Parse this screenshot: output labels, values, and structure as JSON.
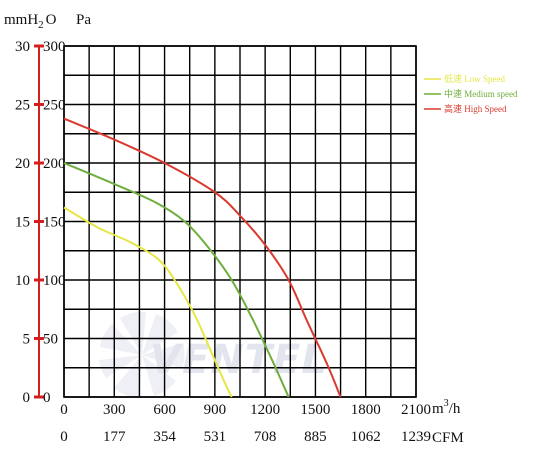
{
  "units": {
    "pressure_left": "mmH2O",
    "pressure_left_base": "mmH",
    "pressure_left_sub": "2",
    "pressure_left_end": "O",
    "pressure_right": "Pa",
    "flow_top": "m3/h",
    "flow_top_base": "m",
    "flow_top_sup": "3",
    "flow_top_end": "/h",
    "flow_bottom": "CFM"
  },
  "watermark": "VENTEL",
  "chart_data": {
    "type": "line",
    "title": "",
    "x_primary": {
      "label": "m3/h",
      "ticks": [
        0,
        300,
        600,
        900,
        1200,
        1500,
        1800,
        2100
      ],
      "range": [
        0,
        2100
      ]
    },
    "x_secondary": {
      "label": "CFM",
      "ticks": [
        0,
        177,
        354,
        531,
        708,
        885,
        1062,
        1239
      ]
    },
    "y_primary": {
      "label": "mmH2O",
      "ticks": [
        0,
        5,
        10,
        15,
        20,
        25,
        30
      ],
      "range": [
        0,
        30
      ]
    },
    "y_secondary": {
      "label": "Pa",
      "ticks": [
        0,
        50,
        100,
        150,
        200,
        250,
        300
      ],
      "range": [
        0,
        300
      ]
    },
    "grid": true,
    "legend_position": "right",
    "series": [
      {
        "name": "低速 Low Speed",
        "color": "#e6e646",
        "points": [
          [
            0,
            162
          ],
          [
            200,
            145
          ],
          [
            400,
            132
          ],
          [
            560,
            118
          ],
          [
            660,
            100
          ],
          [
            780,
            70
          ],
          [
            880,
            38
          ],
          [
            960,
            12
          ],
          [
            1000,
            0
          ]
        ]
      },
      {
        "name": "中速 Medium speed",
        "color": "#6fae3c",
        "points": [
          [
            0,
            200
          ],
          [
            300,
            182
          ],
          [
            550,
            166
          ],
          [
            720,
            150
          ],
          [
            860,
            128
          ],
          [
            1000,
            100
          ],
          [
            1120,
            68
          ],
          [
            1240,
            32
          ],
          [
            1340,
            0
          ]
        ]
      },
      {
        "name": "高速 High Speed",
        "color": "#d93a2e",
        "points": [
          [
            0,
            238
          ],
          [
            300,
            220
          ],
          [
            600,
            200
          ],
          [
            900,
            175
          ],
          [
            1050,
            155
          ],
          [
            1200,
            130
          ],
          [
            1340,
            100
          ],
          [
            1450,
            65
          ],
          [
            1570,
            28
          ],
          [
            1650,
            0
          ]
        ]
      }
    ]
  }
}
